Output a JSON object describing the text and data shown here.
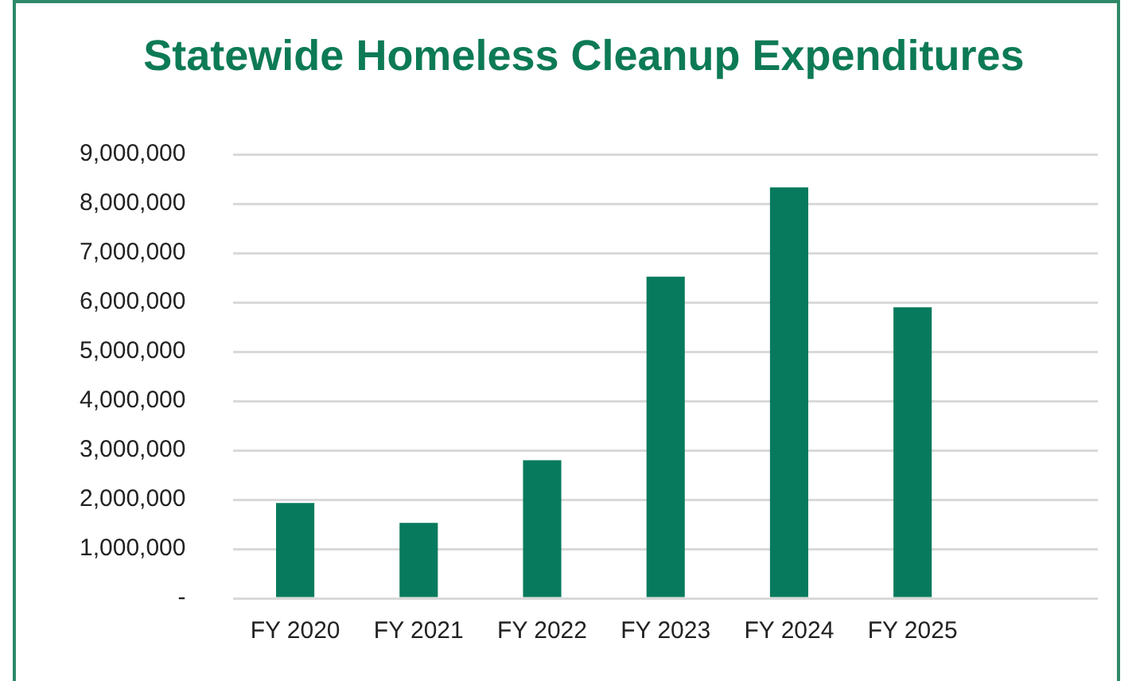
{
  "chart_data": {
    "type": "bar",
    "title": "Statewide Homeless Cleanup Expenditures",
    "categories": [
      "FY 2020",
      "FY 2021",
      "FY 2022",
      "FY 2023",
      "FY 2024",
      "FY 2025",
      null
    ],
    "values": [
      1930000,
      1530000,
      2800000,
      6520000,
      8330000,
      5900000,
      null
    ],
    "color": "#077a5d",
    "ylim": [
      0,
      9000000
    ],
    "yticks": [
      {
        "value": 0,
        "label": "-"
      },
      {
        "value": 1000000,
        "label": "1,000,000"
      },
      {
        "value": 2000000,
        "label": "2,000,000"
      },
      {
        "value": 3000000,
        "label": "3,000,000"
      },
      {
        "value": 4000000,
        "label": "4,000,000"
      },
      {
        "value": 5000000,
        "label": "5,000,000"
      },
      {
        "value": 6000000,
        "label": "6,000,000"
      },
      {
        "value": 7000000,
        "label": "7,000,000"
      },
      {
        "value": 8000000,
        "label": "8,000,000"
      },
      {
        "value": 9000000,
        "label": "9,000,000"
      }
    ],
    "grid": "y",
    "legend": false
  }
}
